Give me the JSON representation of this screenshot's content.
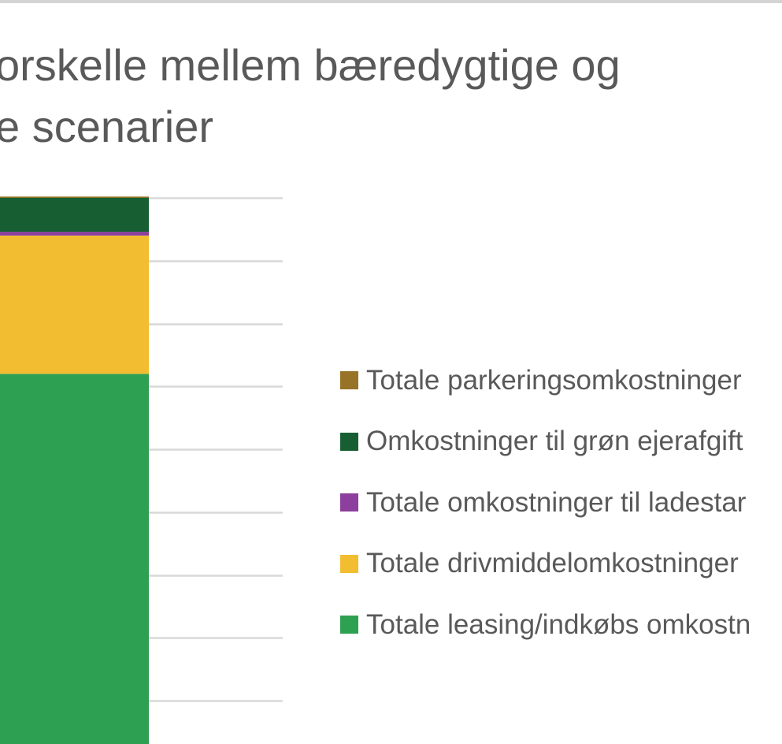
{
  "title_lines": [
    "orskelle mellem bæredygtige og",
    "e scenarier"
  ],
  "chart_data": {
    "type": "bar",
    "stacked": true,
    "grid": true,
    "ylim": [
      0,
      9
    ],
    "categories": [
      ""
    ],
    "series": [
      {
        "name": "Totale leasing/indkøbs omkostn",
        "color": "#2ea052",
        "values": [
          6.2
        ]
      },
      {
        "name": "Totale drivmiddelomkostninger",
        "color": "#f2bd31",
        "values": [
          2.2
        ]
      },
      {
        "name": "Totale omkostninger til ladestar",
        "color": "#8c3f9c",
        "values": [
          0.06
        ]
      },
      {
        "name": "Omkostninger til grøn ejerafgift",
        "color": "#175f33",
        "values": [
          0.54
        ]
      },
      {
        "name": "Totale parkeringsomkostninger",
        "color": "#967326",
        "values": [
          0.02
        ]
      }
    ]
  }
}
